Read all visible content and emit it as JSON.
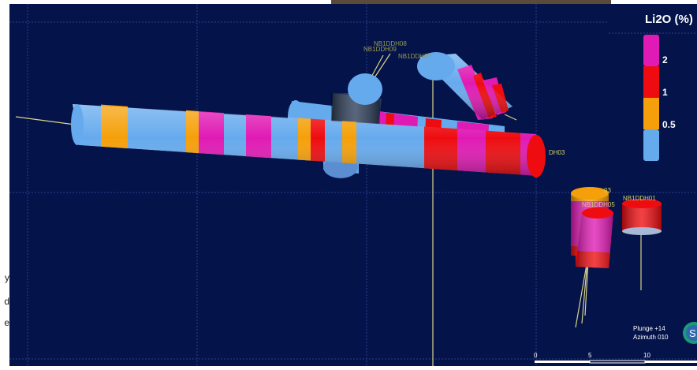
{
  "legend": {
    "title": "Li2O (%)",
    "labels": [
      "2",
      "1",
      "0.5"
    ],
    "colors": {
      "pink": "#e01ab4",
      "red": "#ee0c10",
      "orange": "#f5a00a",
      "blue": "#66aaee"
    }
  },
  "drillholes": {
    "label_a": "NB1DDH08",
    "label_b": "NB1DDH09",
    "label_c": "NB1DDH07",
    "label_d": "DH03",
    "label_e": "NB1DDH05",
    "label_f": "NB1DDH01",
    "label_g": "03"
  },
  "view": {
    "plunge": "Plunge +14",
    "azimuth": "Azimuth 010",
    "compass_letter": "S"
  },
  "scale": {
    "ticks": [
      "0",
      "5",
      "10"
    ]
  },
  "side_text": {
    "line1": "y",
    "line2": "d",
    "line3": "e"
  },
  "colors": {
    "background": "#04134a",
    "grid": "#2a3f8a",
    "hole_trace": "#d8d48a"
  }
}
